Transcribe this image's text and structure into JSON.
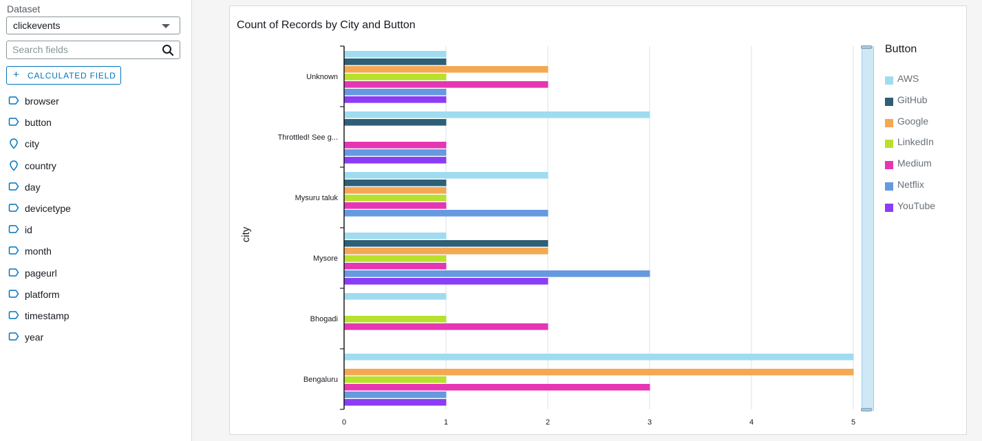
{
  "sidebar": {
    "dataset_label": "Dataset",
    "dataset_value": "clickevents",
    "search_placeholder": "Search fields",
    "calc_field_label": "CALCULATED FIELD",
    "fields": [
      {
        "name": "browser",
        "icon": "dimension-tag-icon"
      },
      {
        "name": "button",
        "icon": "dimension-tag-icon"
      },
      {
        "name": "city",
        "icon": "geo-pin-icon"
      },
      {
        "name": "country",
        "icon": "geo-pin-icon"
      },
      {
        "name": "day",
        "icon": "dimension-tag-icon"
      },
      {
        "name": "devicetype",
        "icon": "dimension-tag-icon"
      },
      {
        "name": "id",
        "icon": "dimension-tag-icon"
      },
      {
        "name": "month",
        "icon": "dimension-tag-icon"
      },
      {
        "name": "pageurl",
        "icon": "dimension-tag-icon"
      },
      {
        "name": "platform",
        "icon": "dimension-tag-icon"
      },
      {
        "name": "timestamp",
        "icon": "dimension-tag-icon"
      },
      {
        "name": "year",
        "icon": "dimension-tag-icon"
      }
    ]
  },
  "colors": {
    "accent": "#0073bb",
    "field_icon": "#0073bb"
  },
  "chart_data": {
    "type": "bar",
    "orientation": "horizontal",
    "title": "Count of Records by City and Button",
    "ylabel": "city",
    "legend_title": "Button",
    "legend_position": "right",
    "xlim": [
      0,
      5
    ],
    "x_ticks": [
      0,
      1,
      2,
      3,
      4,
      5
    ],
    "grid": true,
    "categories": [
      "Unknown",
      "Throttled! See g...",
      "Mysuru taluk",
      "Mysore",
      "Bhogadi",
      "Bengaluru"
    ],
    "series": [
      {
        "name": "AWS",
        "color": "#9fdcf0",
        "values": [
          1,
          3,
          2,
          1,
          1,
          5
        ]
      },
      {
        "name": "GitHub",
        "color": "#2e5f76",
        "values": [
          1,
          1,
          1,
          2,
          0,
          0
        ]
      },
      {
        "name": "Google",
        "color": "#f5a852",
        "values": [
          2,
          0,
          1,
          2,
          0,
          5
        ]
      },
      {
        "name": "LinkedIn",
        "color": "#b8e02e",
        "values": [
          1,
          0,
          1,
          1,
          1,
          1
        ]
      },
      {
        "name": "Medium",
        "color": "#e536b3",
        "values": [
          2,
          1,
          1,
          1,
          2,
          3
        ]
      },
      {
        "name": "Netflix",
        "color": "#6699e0",
        "values": [
          1,
          1,
          2,
          3,
          0,
          1
        ]
      },
      {
        "name": "YouTube",
        "color": "#8a3df5",
        "values": [
          1,
          1,
          0,
          2,
          0,
          1
        ]
      }
    ]
  }
}
